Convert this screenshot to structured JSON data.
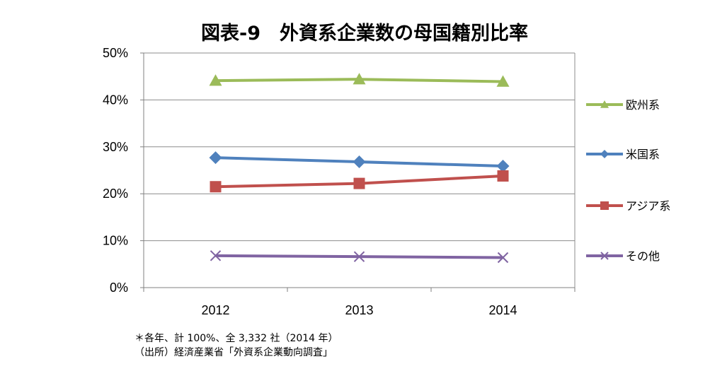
{
  "chart_data": {
    "type": "line",
    "title": "図表-9　外資系企業数の母国籍別比率",
    "categories": [
      "2012",
      "2013",
      "2014"
    ],
    "ylim": [
      0,
      50
    ],
    "yticks": [
      "0%",
      "10%",
      "20%",
      "30%",
      "40%",
      "50%"
    ],
    "ytick_values": [
      0,
      10,
      20,
      30,
      40,
      50
    ],
    "grid": true,
    "legend_position": "right",
    "series": [
      {
        "name": "欧州系",
        "values": [
          44.1,
          44.4,
          43.9
        ],
        "color": "#9bbb59",
        "marker": "triangle"
      },
      {
        "name": "米国系",
        "values": [
          27.7,
          26.8,
          25.9
        ],
        "color": "#4f81bd",
        "marker": "diamond"
      },
      {
        "name": "アジア系",
        "values": [
          21.5,
          22.2,
          23.8
        ],
        "color": "#c0504d",
        "marker": "square"
      },
      {
        "name": "その他",
        "values": [
          6.8,
          6.6,
          6.4
        ],
        "color": "#8064a2",
        "marker": "x"
      }
    ]
  },
  "notes": [
    "＊各年、計 100%、全 3,332 社（2014 年）",
    "（出所）経済産業省「外資系企業動向調査」"
  ]
}
